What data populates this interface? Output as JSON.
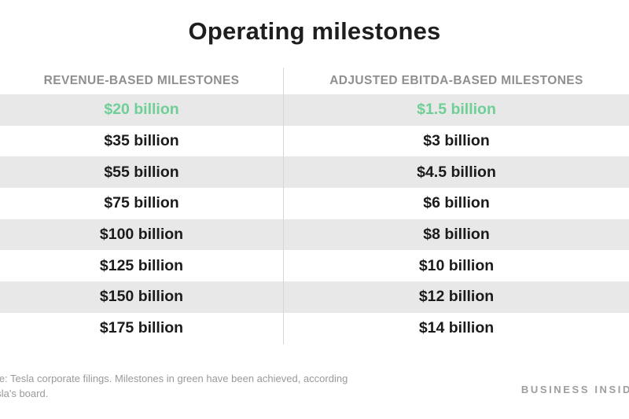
{
  "chart_data": {
    "type": "table",
    "title": "Operating milestones",
    "columns": [
      "REVENUE-BASED MILESTONES",
      "ADJUSTED EBITDA-BASED MILESTONES"
    ],
    "rows": [
      {
        "revenue": "$20 billion",
        "ebitda": "$1.5 billion",
        "achieved": true
      },
      {
        "revenue": "$35 billion",
        "ebitda": "$3 billion",
        "achieved": false
      },
      {
        "revenue": "$55 billion",
        "ebitda": "$4.5 billion",
        "achieved": false
      },
      {
        "revenue": "$75 billion",
        "ebitda": "$6 billion",
        "achieved": false
      },
      {
        "revenue": "$100 billion",
        "ebitda": "$8 billion",
        "achieved": false
      },
      {
        "revenue": "$125 billion",
        "ebitda": "$10 billion",
        "achieved": false
      },
      {
        "revenue": "$150 billion",
        "ebitda": "$12 billion",
        "achieved": false
      },
      {
        "revenue": "$175 billion",
        "ebitda": "$14 billion",
        "achieved": false
      }
    ],
    "achieved_color": "#6fcf97",
    "stripe_color": "#e8e8e8"
  },
  "footer": {
    "source_line1": "rce: Tesla corporate filings. Milestones in green have been achieved, according",
    "source_line2": "esla's board.",
    "brand": "BUSINESS INSID"
  }
}
